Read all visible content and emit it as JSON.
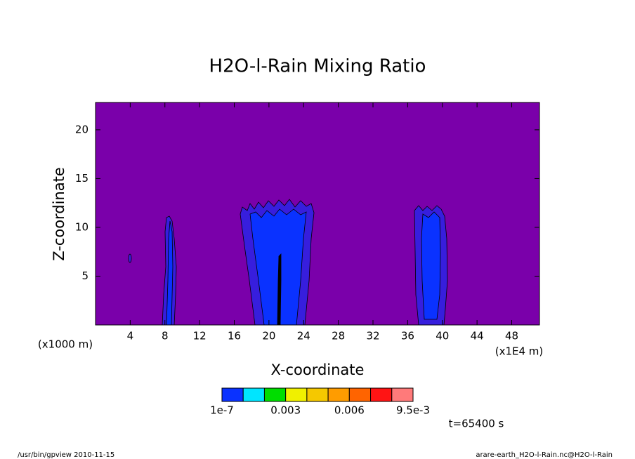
{
  "chart_data": {
    "type": "contour",
    "title": "H2O-l-Rain Mixing Ratio",
    "xlabel": "X-coordinate",
    "ylabel": "Z-coordinate",
    "x_unit_left": "(x1000 m)",
    "x_unit_right": "(x1E4 m)",
    "annotation": "t=65400 s",
    "footer_left": "/usr/bin/gpview  2010-11-15",
    "footer_right": "arare-earth_H2O-l-Rain.nc@H2O-l-Rain",
    "xlim": [
      0,
      51.2
    ],
    "xticks": [
      4,
      8,
      12,
      16,
      20,
      24,
      28,
      32,
      36,
      40,
      44,
      48
    ],
    "ylim": [
      0,
      22.8
    ],
    "yticks": [
      5,
      10,
      15,
      20
    ],
    "under_color": "#7a00aa",
    "levels": [
      1e-07,
      0.001,
      0.002,
      0.003,
      0.004,
      0.005,
      0.006,
      0.007,
      0.008,
      0.0095
    ],
    "colors": [
      "#0a32ff",
      "#00e5ff",
      "#00dd00",
      "#f0f000",
      "#f5c800",
      "#ff9c00",
      "#ff6400",
      "#ff1414",
      "#ff7a7a"
    ],
    "colorbar_ticks": [
      {
        "value": 1e-07,
        "label": "1e-7"
      },
      0.003,
      0.006,
      {
        "value": 0.0095,
        "label": "9.5e-3"
      }
    ]
  }
}
